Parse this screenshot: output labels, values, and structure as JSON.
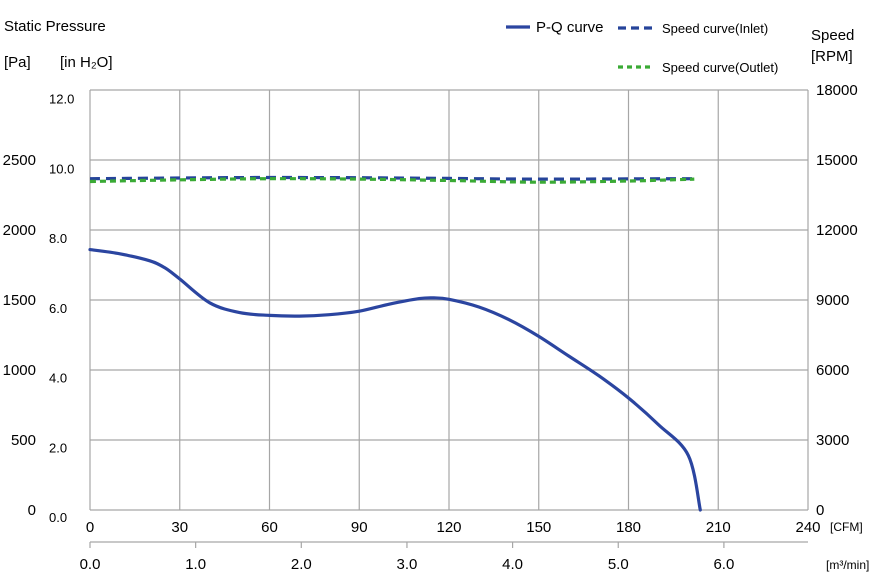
{
  "chart_data": {
    "type": "line",
    "y_left_title": "Static Pressure",
    "y_left_unit_pa": "[Pa]",
    "y_left_unit_inh2o": "[in H₂O]",
    "y_right_title": "Speed",
    "y_right_unit": "[RPM]",
    "x_top_unit": "[CFM]",
    "x_bottom_unit": "[m³/min]",
    "x_cfm_ticks": [
      "0",
      "30",
      "60",
      "90",
      "120",
      "150",
      "180",
      "210",
      "240"
    ],
    "x_m3_ticks": [
      "0.0",
      "1.0",
      "2.0",
      "3.0",
      "4.0",
      "5.0",
      "6.0"
    ],
    "y_pa_ticks": [
      "0",
      "500",
      "1000",
      "1500",
      "2000",
      "2500"
    ],
    "y_inh2o_ticks": [
      "0.0",
      "2.0",
      "4.0",
      "6.0",
      "8.0",
      "10.0",
      "12.0"
    ],
    "y_rpm_ticks": [
      "0",
      "3000",
      "6000",
      "9000",
      "12000",
      "15000",
      "18000"
    ],
    "xlim_cfm": [
      0,
      240
    ],
    "ylim_pa": [
      0,
      3000
    ],
    "ylim_rpm": [
      0,
      18000
    ],
    "grid": true,
    "legend_position": "top-right",
    "colors": {
      "pq": "#2b45a0",
      "inlet": "#26449a",
      "outlet": "#3aaa35",
      "grid": "#a6a6a6"
    },
    "series": [
      {
        "name": "P-Q curve",
        "axis": "pressure_pa",
        "x": [
          0,
          10,
          20,
          25,
          30,
          40,
          50,
          60,
          70,
          80,
          90,
          100,
          110,
          115,
          120,
          130,
          140,
          150,
          160,
          170,
          180,
          190,
          200,
          204
        ],
        "y": [
          1860,
          1830,
          1780,
          1730,
          1650,
          1480,
          1410,
          1390,
          1385,
          1395,
          1420,
          1470,
          1510,
          1515,
          1505,
          1450,
          1360,
          1240,
          1100,
          960,
          800,
          610,
          390,
          0
        ]
      },
      {
        "name": "Speed curve(Inlet)",
        "axis": "speed_rpm",
        "x": [
          0,
          30,
          60,
          90,
          120,
          150,
          180,
          202
        ],
        "y": [
          14200,
          14230,
          14250,
          14240,
          14210,
          14180,
          14190,
          14200
        ]
      },
      {
        "name": "Speed curve(Outlet)",
        "axis": "speed_rpm",
        "x": [
          0,
          30,
          60,
          90,
          120,
          150,
          180,
          202
        ],
        "y": [
          14080,
          14150,
          14200,
          14180,
          14120,
          14050,
          14100,
          14180
        ]
      }
    ]
  }
}
